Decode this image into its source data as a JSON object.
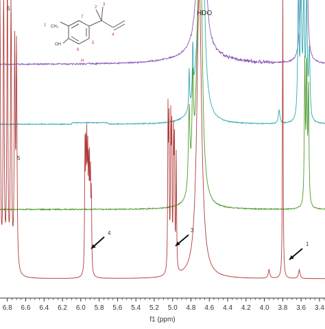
{
  "chart_data": {
    "type": "line",
    "xlabel": "f1 (ppm)",
    "x_reversed": true,
    "xlim": [
      6.88,
      3.34
    ],
    "x_ticks": [
      "6.8",
      "6.6",
      "6.4",
      "6.2",
      "6.0",
      "5.8",
      "5.6",
      "5.4",
      "5.2",
      "5.0",
      "4.8",
      "4.6",
      "4.4",
      "4.2",
      "4.0",
      "3.8",
      "3.6",
      "3.4"
    ],
    "grid": false,
    "series": [
      {
        "color": "#8a56b8",
        "peaks": [
          {
            "x": 4.7,
            "height": 1.0,
            "width": 0.04
          },
          {
            "x": 4.66,
            "height": 1.0,
            "width": 0.02
          },
          {
            "x": 3.6,
            "height": 1.0,
            "width": 0.01
          },
          {
            "x": 3.58,
            "height": 1.0,
            "width": 0.01
          },
          {
            "x": 3.56,
            "height": 1.0,
            "width": 0.01
          },
          {
            "x": 3.54,
            "height": 1.0,
            "width": 0.01
          }
        ]
      },
      {
        "color": "#2fa8b0",
        "peaks": [
          {
            "x": 4.7,
            "height": 1.0,
            "width": 0.04
          },
          {
            "x": 4.67,
            "height": 1.0,
            "width": 0.02
          },
          {
            "x": 4.82,
            "height": 0.3,
            "width": 0.005
          },
          {
            "x": 4.78,
            "height": 0.4,
            "width": 0.005
          },
          {
            "x": 3.63,
            "height": 1.0,
            "width": 0.008
          },
          {
            "x": 3.6,
            "height": 1.0,
            "width": 0.008
          },
          {
            "x": 3.57,
            "height": 1.0,
            "width": 0.008
          },
          {
            "x": 3.54,
            "height": 0.9,
            "width": 0.008
          },
          {
            "x": 3.51,
            "height": 0.5,
            "width": 0.008
          },
          {
            "x": 3.84,
            "height": 0.1,
            "width": 0.01
          }
        ]
      },
      {
        "color": "#4a9a2a",
        "peaks": [
          {
            "x": 4.72,
            "height": 1.0,
            "width": 0.03
          },
          {
            "x": 4.69,
            "height": 1.0,
            "width": 0.02
          },
          {
            "x": 4.82,
            "height": 0.5,
            "width": 0.01
          },
          {
            "x": 4.78,
            "height": 0.6,
            "width": 0.01
          },
          {
            "x": 3.56,
            "height": 0.85,
            "width": 0.006
          },
          {
            "x": 3.54,
            "height": 0.85,
            "width": 0.006
          },
          {
            "x": 3.52,
            "height": 0.7,
            "width": 0.006
          }
        ]
      },
      {
        "color": "#b03a3a",
        "peaks": [
          {
            "x": 6.88,
            "height": 1.0,
            "width": 0.006
          },
          {
            "x": 6.84,
            "height": 1.0,
            "width": 0.006
          },
          {
            "x": 6.8,
            "height": 1.0,
            "width": 0.006
          },
          {
            "x": 6.76,
            "height": 1.0,
            "width": 0.006
          },
          {
            "x": 6.72,
            "height": 0.75,
            "width": 0.006
          },
          {
            "x": 6.7,
            "height": 0.75,
            "width": 0.006
          },
          {
            "x": 5.955,
            "height": 0.42,
            "width": 0.004
          },
          {
            "x": 5.945,
            "height": 0.4,
            "width": 0.004
          },
          {
            "x": 5.935,
            "height": 0.38,
            "width": 0.004
          },
          {
            "x": 5.925,
            "height": 0.36,
            "width": 0.004
          },
          {
            "x": 5.915,
            "height": 0.34,
            "width": 0.004
          },
          {
            "x": 5.905,
            "height": 0.32,
            "width": 0.004
          },
          {
            "x": 5.895,
            "height": 0.3,
            "width": 0.004
          },
          {
            "x": 5.885,
            "height": 0.28,
            "width": 0.004
          },
          {
            "x": 5.05,
            "height": 0.52,
            "width": 0.004
          },
          {
            "x": 5.04,
            "height": 0.5,
            "width": 0.004
          },
          {
            "x": 5.02,
            "height": 0.48,
            "width": 0.004
          },
          {
            "x": 5.01,
            "height": 0.46,
            "width": 0.004
          },
          {
            "x": 4.99,
            "height": 0.44,
            "width": 0.004
          },
          {
            "x": 4.98,
            "height": 0.42,
            "width": 0.004
          },
          {
            "x": 4.96,
            "height": 0.4,
            "width": 0.004
          },
          {
            "x": 4.71,
            "height": 1.0,
            "width": 0.03
          },
          {
            "x": 3.8,
            "height": 1.0,
            "width": 0.004
          },
          {
            "x": 3.95,
            "height": 0.03,
            "width": 0.01
          },
          {
            "x": 3.62,
            "height": 0.03,
            "width": 0.01
          }
        ]
      }
    ],
    "annotations": [
      {
        "text": "HDO",
        "x": 4.48
      },
      {
        "text": "6",
        "x": 6.86
      },
      {
        "text": "5",
        "x": 6.82
      },
      {
        "text": "4",
        "x": 5.75
      },
      {
        "text": "3",
        "x": 4.9
      },
      {
        "text": "1",
        "x": 3.65
      }
    ],
    "structure_labels": [
      "1",
      "7",
      "2",
      "3",
      "4",
      "5",
      "6",
      "OH",
      "CH₃",
      "H"
    ]
  }
}
